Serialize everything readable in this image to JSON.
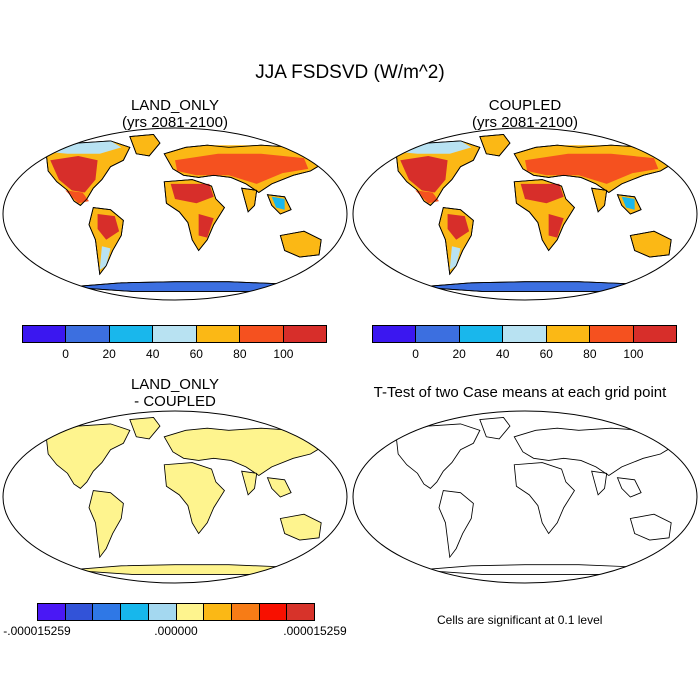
{
  "figure": {
    "title": "JJA FSDSVD (W/m^2)"
  },
  "panels": {
    "land_only": {
      "title_line1": "LAND_ONLY",
      "title_line2": "(yrs 2081-2100)"
    },
    "coupled": {
      "title_line1": "COUPLED",
      "title_line2": "(yrs 2081-2100)"
    },
    "difference": {
      "title_line1": "LAND_ONLY",
      "title_line2": "- COUPLED"
    },
    "ttest": {
      "title": "T-Test of two Case means at each grid point",
      "note": "Cells are significant at 0.1 level"
    }
  },
  "colorbar_main": {
    "colors": [
      "#3b17f0",
      "#3c6fe0",
      "#19b7ec",
      "#b8e2f2",
      "#fbb815",
      "#f5511f",
      "#d72e2a"
    ],
    "ticks": [
      "0",
      "20",
      "40",
      "60",
      "80",
      "100"
    ]
  },
  "colorbar_diff": {
    "colors": [
      "#4a18f5",
      "#3253d8",
      "#2f78e6",
      "#17b7ec",
      "#a4d8f0",
      "#fef48e",
      "#fbb815",
      "#f77c16",
      "#f81000",
      "#d7332a"
    ],
    "ticks": [
      ".000015259",
      ".000000",
      ".000015259"
    ],
    "tick_prefix_left": "-"
  },
  "map_colors": {
    "ocean": "#ffffff",
    "diff_land": "#fef48e",
    "antarctica": "#3c6fe0",
    "tropics_hot": "#d72e2a",
    "hot": "#f5511f",
    "warm": "#fbb815",
    "cool": "#b8e2f2",
    "cold": "#19b7ec"
  }
}
